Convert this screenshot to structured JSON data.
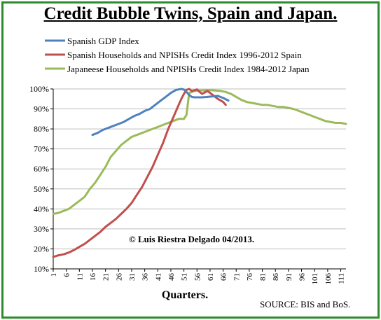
{
  "chart_data": {
    "type": "line",
    "title": "Credit Bubble Twins, Spain and Japan.",
    "xlabel": "Quarters.",
    "ylabel": "",
    "x_tick_labels": [
      "1",
      "6",
      "11",
      "16",
      "21",
      "26",
      "31",
      "36",
      "41",
      "46",
      "51",
      "56",
      "61",
      "66",
      "71",
      "76",
      "81",
      "86",
      "91",
      "96",
      "101",
      "106",
      "111"
    ],
    "xlim": [
      1,
      113
    ],
    "y_tick_labels": [
      "10%",
      "20%",
      "30%",
      "40%",
      "50%",
      "60%",
      "70%",
      "80%",
      "90%",
      "100%"
    ],
    "ylim": [
      10,
      100
    ],
    "grid": "horizontal",
    "legend_position": "top-left",
    "annotation": "© Luis Riestra Delgado 04/2013.",
    "source": "SOURCE: BIS and BoS.",
    "series": [
      {
        "name": "Spanish GDP Index",
        "color": "#4f81bd",
        "x": [
          16,
          18,
          20,
          22,
          24,
          26,
          28,
          30,
          32,
          34,
          36,
          38,
          40,
          42,
          44,
          46,
          48,
          50,
          51,
          52,
          53,
          54,
          55,
          56,
          58,
          60,
          62,
          64,
          66,
          68
        ],
        "y": [
          77,
          78,
          79.5,
          80.5,
          81.5,
          82.5,
          83.5,
          85,
          86.5,
          87.5,
          89,
          90,
          92,
          94,
          96,
          98,
          99.5,
          100,
          99.7,
          98.5,
          97,
          96,
          95.8,
          95.8,
          95.8,
          96,
          96.3,
          96.5,
          95.5,
          94.2
        ]
      },
      {
        "name": "Spanish Households and NPISHs Credit Index 1996-2012 Spain",
        "color": "#c0504d",
        "x": [
          1,
          3,
          5,
          7,
          9,
          11,
          13,
          15,
          17,
          19,
          21,
          23,
          25,
          27,
          29,
          31,
          33,
          35,
          37,
          39,
          41,
          43,
          45,
          47,
          49,
          50,
          51,
          52,
          53,
          54,
          55,
          56,
          57,
          58,
          60,
          62,
          64,
          66,
          67
        ],
        "y": [
          16,
          16.8,
          17.3,
          18.2,
          19.5,
          21,
          22.5,
          24.5,
          26.5,
          28.5,
          31,
          33,
          35,
          37.5,
          40,
          43,
          47,
          51,
          56,
          61,
          67,
          73,
          80,
          86,
          92,
          95,
          97.5,
          99.5,
          100,
          99,
          99.3,
          99.8,
          98.5,
          97.5,
          99,
          97,
          95,
          93.5,
          92
        ]
      },
      {
        "name": "Japaneese Households and NPISHs Credit Index 1984-2012 Japan",
        "color": "#9bbb59",
        "x": [
          1,
          3,
          5,
          7,
          9,
          11,
          13,
          15,
          17,
          19,
          21,
          23,
          25,
          27,
          29,
          31,
          33,
          35,
          37,
          39,
          41,
          43,
          45,
          47,
          49,
          51,
          52,
          53,
          54,
          55,
          57,
          59,
          61,
          63,
          65,
          67,
          69,
          71,
          73,
          75,
          77,
          79,
          81,
          83,
          85,
          87,
          89,
          91,
          93,
          95,
          97,
          99,
          101,
          103,
          105,
          107,
          109,
          111,
          113
        ],
        "y": [
          37.5,
          38,
          39,
          40,
          42,
          44,
          46,
          50,
          53,
          57,
          61,
          66,
          69,
          72,
          74,
          76,
          77,
          78,
          79,
          80,
          81,
          82,
          83,
          84,
          85,
          85,
          87,
          98,
          98.5,
          99,
          99.2,
          99.3,
          99.4,
          99.2,
          99,
          98.5,
          97.5,
          96,
          94.5,
          93.5,
          93,
          92.5,
          92,
          92,
          91.5,
          91,
          91,
          90.5,
          90,
          89,
          88,
          87,
          86,
          85,
          84,
          83.5,
          83,
          83,
          82.5
        ]
      }
    ]
  }
}
